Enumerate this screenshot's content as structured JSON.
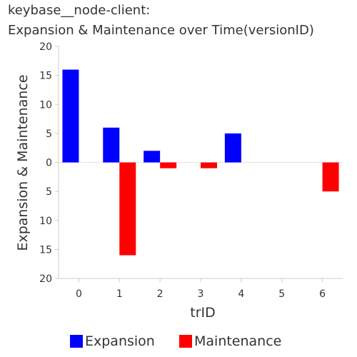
{
  "chart_data": {
    "type": "bar",
    "title_lines": [
      "keybase__node-client:",
      "Expansion & Maintenance over Time(versionID)"
    ],
    "xlabel": "trID",
    "ylabel": "Expansion & Maintenance",
    "categories": [
      "0",
      "1",
      "2",
      "3",
      "4",
      "5",
      "6"
    ],
    "series": [
      {
        "name": "Expansion",
        "color": "#0000ff",
        "direction": "up",
        "values": [
          16,
          6,
          2,
          0,
          5,
          0,
          0
        ]
      },
      {
        "name": "Maintenance",
        "color": "#ff0000",
        "direction": "down",
        "values": [
          0,
          16,
          1,
          1,
          0,
          0,
          5
        ]
      }
    ],
    "ylim": [
      -20,
      20
    ],
    "y_ticks": [
      20,
      15,
      10,
      5,
      0,
      5,
      10,
      15,
      20
    ],
    "y_tick_values": [
      20,
      15,
      10,
      5,
      0,
      -5,
      -10,
      -15,
      -20
    ],
    "grid": false,
    "legend_position": "bottom"
  }
}
